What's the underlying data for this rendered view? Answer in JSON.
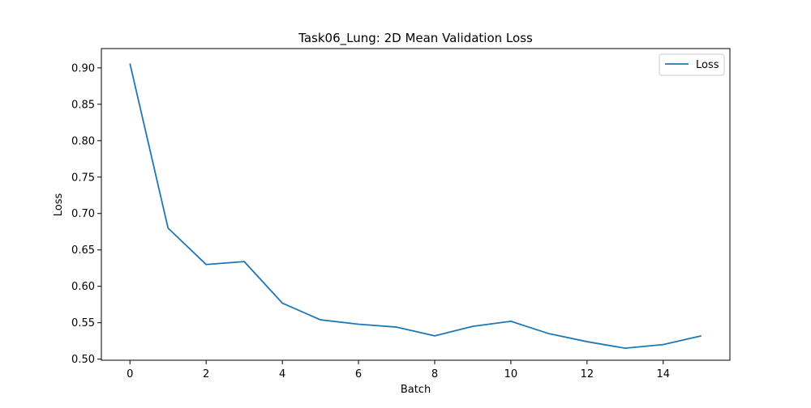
{
  "chart_data": {
    "type": "line",
    "title": "Task06_Lung: 2D Mean Validation Loss",
    "xlabel": "Batch",
    "ylabel": "Loss",
    "x": [
      0,
      1,
      2,
      3,
      4,
      5,
      6,
      7,
      8,
      9,
      10,
      11,
      12,
      13,
      14,
      15
    ],
    "series": [
      {
        "name": "Loss",
        "color": "#1f77b4",
        "values": [
          0.906,
          0.68,
          0.63,
          0.634,
          0.577,
          0.554,
          0.548,
          0.544,
          0.532,
          0.545,
          0.552,
          0.535,
          0.524,
          0.515,
          0.52,
          0.532
        ]
      }
    ],
    "xlim": [
      -0.75,
      15.75
    ],
    "ylim": [
      0.4985,
      0.9265
    ],
    "xticks": [
      "0",
      "2",
      "4",
      "6",
      "8",
      "10",
      "12",
      "14"
    ],
    "yticks": [
      "0.50",
      "0.55",
      "0.60",
      "0.65",
      "0.70",
      "0.75",
      "0.80",
      "0.85",
      "0.90"
    ],
    "legend": {
      "position": "top-right",
      "entries": [
        "Loss"
      ]
    },
    "grid": false
  }
}
